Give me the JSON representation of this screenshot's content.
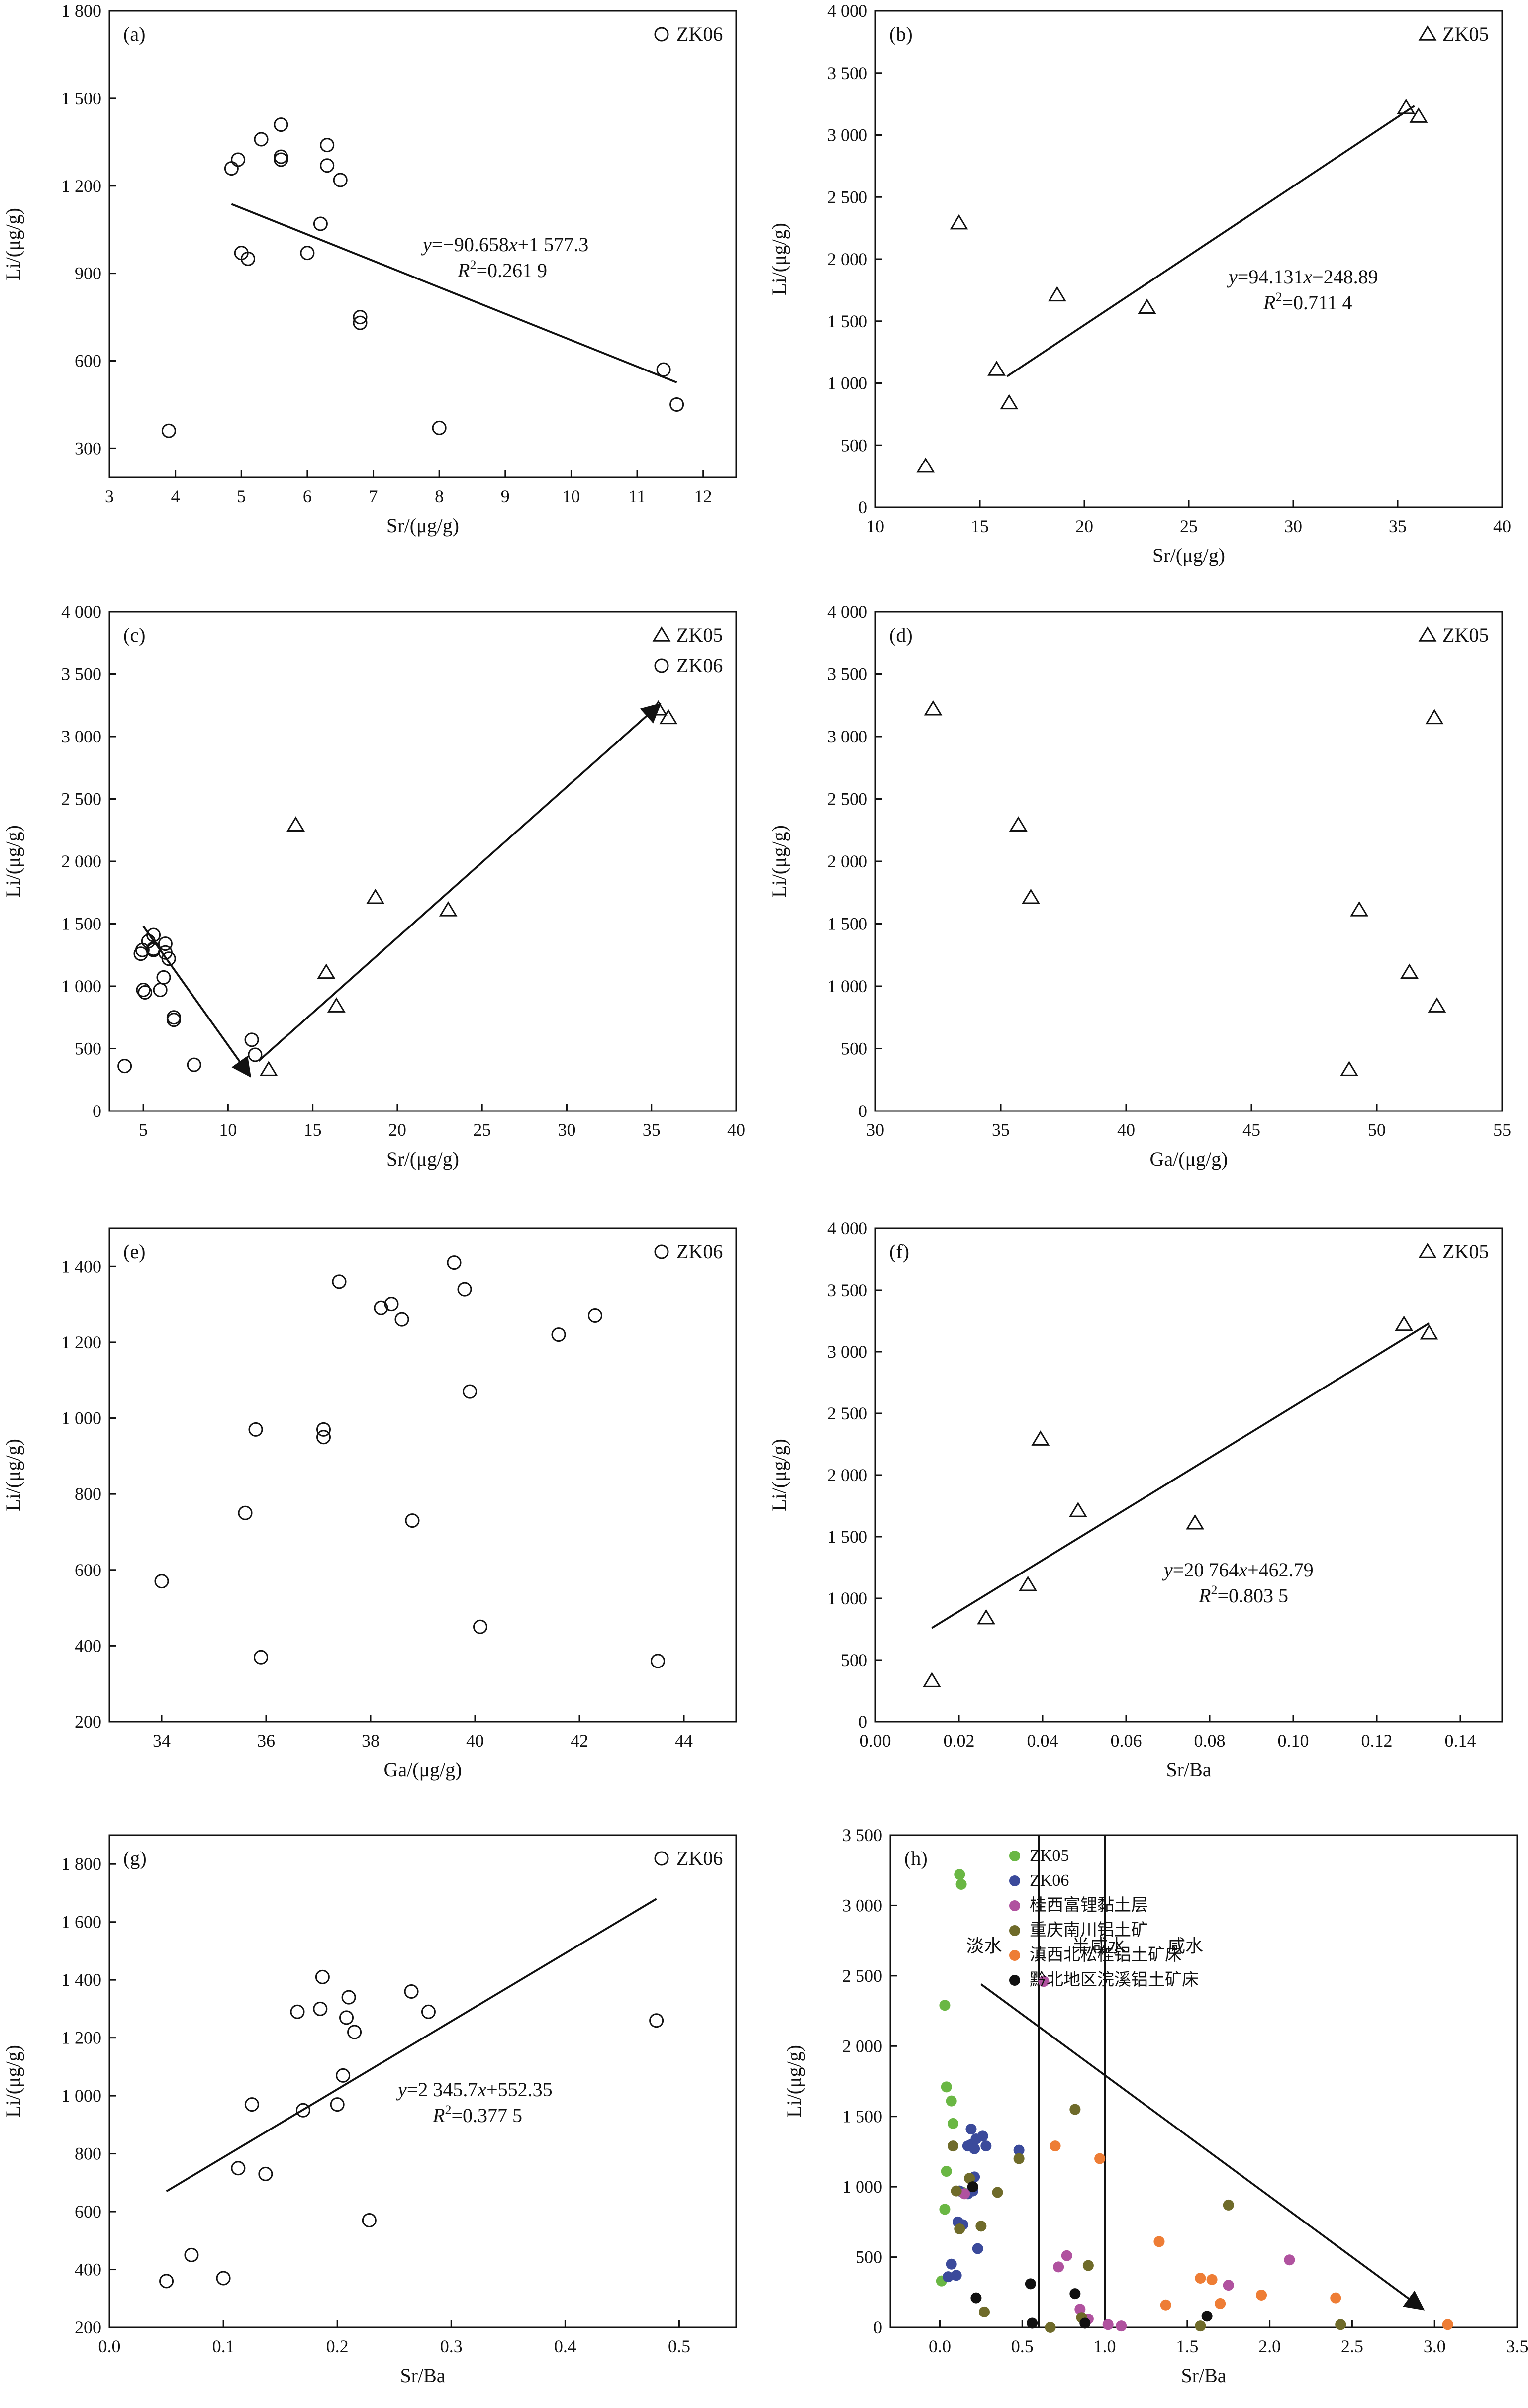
{
  "chart_data": [
    {
      "id": "a",
      "type": "scatter",
      "panel_label": "(a)",
      "xlabel": "Sr/(μg/g)",
      "ylabel": "Li/(μg/g)",
      "xlim": [
        3,
        12.5
      ],
      "ylim": [
        200,
        1800
      ],
      "xticks": [
        3,
        4,
        5,
        6,
        7,
        8,
        9,
        10,
        11,
        12
      ],
      "xtick_labels": [
        "3",
        "4",
        "5",
        "6",
        "7",
        "8",
        "9",
        "10",
        "11",
        "12"
      ],
      "yticks": [
        300,
        600,
        900,
        1200,
        1500,
        1800
      ],
      "ytick_labels": [
        "300",
        "600",
        "900",
        "1 200",
        "1 500",
        "1 800"
      ],
      "legend": [
        {
          "name": "ZK06",
          "marker": "circle",
          "color": "#111111"
        }
      ],
      "series": [
        {
          "name": "ZK06",
          "marker": "circle",
          "color": "#111111",
          "x": [
            3.9,
            4.85,
            4.95,
            5.0,
            5.1,
            5.3,
            5.6,
            5.6,
            5.6,
            6.0,
            6.2,
            6.3,
            6.3,
            6.5,
            6.8,
            6.8,
            8.0,
            11.4,
            11.6
          ],
          "y": [
            360,
            1260,
            1290,
            970,
            950,
            1360,
            1300,
            1290,
            1410,
            970,
            1070,
            1340,
            1270,
            1220,
            750,
            730,
            370,
            570,
            450
          ]
        }
      ],
      "fit": {
        "x": [
          4.85,
          11.6
        ],
        "y": [
          1137.6,
          525.7
        ]
      },
      "annotation": {
        "equation": "y=−90.658x+1 577.3",
        "r2": "0.261 9"
      }
    },
    {
      "id": "b",
      "type": "scatter",
      "panel_label": "(b)",
      "xlabel": "Sr/(μg/g)",
      "ylabel": "Li/(μg/g)",
      "xlim": [
        10,
        40
      ],
      "ylim": [
        0,
        4000
      ],
      "xticks": [
        10,
        15,
        20,
        25,
        30,
        35,
        40
      ],
      "xtick_labels": [
        "10",
        "15",
        "20",
        "25",
        "30",
        "35",
        "40"
      ],
      "yticks": [
        0,
        500,
        1000,
        1500,
        2000,
        2500,
        3000,
        3500,
        4000
      ],
      "ytick_labels": [
        "0",
        "500",
        "1 000",
        "1 500",
        "2 000",
        "2 500",
        "3 000",
        "3 500",
        "4 000"
      ],
      "legend": [
        {
          "name": "ZK05",
          "marker": "triangle",
          "color": "#111111"
        }
      ],
      "series": [
        {
          "name": "ZK05",
          "marker": "triangle",
          "color": "#111111",
          "x": [
            12.4,
            14.0,
            15.8,
            16.4,
            18.7,
            23.0,
            35.4,
            36.0
          ],
          "y": [
            330,
            2290,
            1110,
            840,
            1710,
            1610,
            3220,
            3150
          ]
        }
      ],
      "fit": {
        "x": [
          16.3,
          35.8
        ],
        "y": [
          1055,
          3235
        ]
      },
      "annotation": {
        "equation": "y=94.131x−248.89",
        "r2": "0.711 4"
      }
    },
    {
      "id": "c",
      "type": "scatter",
      "panel_label": "(c)",
      "xlabel": "Sr/(μg/g)",
      "ylabel": "Li/(μg/g)",
      "xlim": [
        3,
        40
      ],
      "ylim": [
        0,
        4000
      ],
      "xticks": [
        5,
        10,
        15,
        20,
        25,
        30,
        35,
        40
      ],
      "xtick_labels": [
        "5",
        "10",
        "15",
        "20",
        "25",
        "30",
        "35",
        "40"
      ],
      "yticks": [
        0,
        500,
        1000,
        1500,
        2000,
        2500,
        3000,
        3500,
        4000
      ],
      "ytick_labels": [
        "0",
        "500",
        "1 000",
        "1 500",
        "2 000",
        "2 500",
        "3 000",
        "3 500",
        "4 000"
      ],
      "legend": [
        {
          "name": "ZK05",
          "marker": "triangle",
          "color": "#111111"
        },
        {
          "name": "ZK06",
          "marker": "circle",
          "color": "#111111"
        }
      ],
      "series": [
        {
          "name": "ZK05",
          "marker": "triangle",
          "color": "#111111",
          "x": [
            12.4,
            14.0,
            15.8,
            16.4,
            18.7,
            23.0,
            35.4,
            36.0
          ],
          "y": [
            330,
            2290,
            1110,
            840,
            1710,
            1610,
            3220,
            3150
          ]
        },
        {
          "name": "ZK06",
          "marker": "circle",
          "color": "#111111",
          "x": [
            3.9,
            4.85,
            4.95,
            5.0,
            5.1,
            5.3,
            5.6,
            5.6,
            5.6,
            6.0,
            6.2,
            6.3,
            6.3,
            6.5,
            6.8,
            6.8,
            8.0,
            11.4,
            11.6
          ],
          "y": [
            360,
            1260,
            1290,
            970,
            950,
            1360,
            1300,
            1290,
            1410,
            970,
            1070,
            1340,
            1270,
            1220,
            750,
            730,
            370,
            570,
            450
          ]
        }
      ],
      "arrows": [
        {
          "from": [
            5.0,
            1480
          ],
          "to": [
            11.3,
            280
          ]
        },
        {
          "from": [
            11.8,
            400
          ],
          "to": [
            35.5,
            3260
          ]
        }
      ]
    },
    {
      "id": "d",
      "type": "scatter",
      "panel_label": "(d)",
      "xlabel": "Ga/(μg/g)",
      "ylabel": "Li/(μg/g)",
      "xlim": [
        30,
        55
      ],
      "ylim": [
        0,
        4000
      ],
      "xticks": [
        30,
        35,
        40,
        45,
        50,
        55
      ],
      "xtick_labels": [
        "30",
        "35",
        "40",
        "45",
        "50",
        "55"
      ],
      "yticks": [
        0,
        500,
        1000,
        1500,
        2000,
        2500,
        3000,
        3500,
        4000
      ],
      "ytick_labels": [
        "0",
        "500",
        "1 000",
        "1 500",
        "2 000",
        "2 500",
        "3 000",
        "3 500",
        "4 000"
      ],
      "legend": [
        {
          "name": "ZK05",
          "marker": "triangle",
          "color": "#111111"
        }
      ],
      "series": [
        {
          "name": "ZK05",
          "marker": "triangle",
          "color": "#111111",
          "x": [
            32.3,
            35.7,
            36.2,
            48.9,
            49.3,
            51.3,
            52.3,
            52.4
          ],
          "y": [
            3220,
            2290,
            1710,
            330,
            1610,
            1110,
            3150,
            840
          ]
        }
      ]
    },
    {
      "id": "e",
      "type": "scatter",
      "panel_label": "(e)",
      "xlabel": "Ga/(μg/g)",
      "ylabel": "Li/(μg/g)",
      "xlim": [
        33,
        45
      ],
      "ylim": [
        200,
        1500
      ],
      "xticks": [
        34,
        36,
        38,
        40,
        42,
        44
      ],
      "xtick_labels": [
        "34",
        "36",
        "38",
        "40",
        "42",
        "44"
      ],
      "yticks": [
        200,
        400,
        600,
        800,
        1000,
        1200,
        1400
      ],
      "ytick_labels": [
        "200",
        "400",
        "600",
        "800",
        "1 000",
        "1 200",
        "1 400"
      ],
      "legend": [
        {
          "name": "ZK06",
          "marker": "circle",
          "color": "#111111"
        }
      ],
      "series": [
        {
          "name": "ZK06",
          "marker": "circle",
          "color": "#111111",
          "x": [
            34.0,
            35.6,
            35.8,
            35.9,
            37.1,
            37.1,
            37.4,
            38.2,
            38.4,
            38.6,
            38.8,
            39.6,
            39.8,
            39.9,
            40.1,
            41.6,
            42.3,
            43.5
          ],
          "y": [
            570,
            750,
            970,
            370,
            970,
            950,
            1360,
            1290,
            1300,
            1260,
            730,
            1410,
            1340,
            1070,
            450,
            1220,
            1270,
            360
          ]
        }
      ]
    },
    {
      "id": "f",
      "type": "scatter",
      "panel_label": "(f)",
      "xlabel": "Sr/Ba",
      "ylabel": "Li/(μg/g)",
      "xlim": [
        0,
        0.15
      ],
      "ylim": [
        0,
        4000
      ],
      "xticks": [
        0,
        0.02,
        0.04,
        0.06,
        0.08,
        0.1,
        0.12,
        0.14
      ],
      "xtick_labels": [
        "0.00",
        "0.02",
        "0.04",
        "0.06",
        "0.08",
        "0.10",
        "0.12",
        "0.14"
      ],
      "yticks": [
        0,
        500,
        1000,
        1500,
        2000,
        2500,
        3000,
        3500,
        4000
      ],
      "ytick_labels": [
        "0",
        "500",
        "1 000",
        "1 500",
        "2 000",
        "2 500",
        "3 000",
        "3 500",
        "4 000"
      ],
      "legend": [
        {
          "name": "ZK05",
          "marker": "triangle",
          "color": "#111111"
        }
      ],
      "series": [
        {
          "name": "ZK05",
          "marker": "triangle",
          "color": "#111111",
          "x": [
            0.0135,
            0.0265,
            0.0365,
            0.0395,
            0.0485,
            0.0765,
            0.1265,
            0.1325
          ],
          "y": [
            330,
            840,
            1110,
            2290,
            1710,
            1610,
            3220,
            3150
          ]
        }
      ],
      "fit": {
        "x": [
          0.0135,
          0.1325
        ],
        "y": [
          760,
          3230
        ]
      },
      "annotation": {
        "equation": "y=20 764x+462.79",
        "r2": "0.803 5"
      }
    },
    {
      "id": "g",
      "type": "scatter",
      "panel_label": "(g)",
      "xlabel": "Sr/Ba",
      "ylabel": "Li/(μg/g)",
      "xlim": [
        0,
        0.55
      ],
      "ylim": [
        200,
        1900
      ],
      "xticks": [
        0,
        0.1,
        0.2,
        0.3,
        0.4,
        0.5
      ],
      "xtick_labels": [
        "0.0",
        "0.1",
        "0.2",
        "0.3",
        "0.4",
        "0.5"
      ],
      "yticks": [
        200,
        400,
        600,
        800,
        1000,
        1200,
        1400,
        1600,
        1800
      ],
      "ytick_labels": [
        "200",
        "400",
        "600",
        "800",
        "1 000",
        "1 200",
        "1 400",
        "1 600",
        "1 800"
      ],
      "legend": [
        {
          "name": "ZK06",
          "marker": "circle",
          "color": "#111111"
        }
      ],
      "series": [
        {
          "name": "ZK06",
          "marker": "circle",
          "color": "#111111",
          "x": [
            0.05,
            0.072,
            0.1,
            0.113,
            0.125,
            0.137,
            0.165,
            0.17,
            0.185,
            0.187,
            0.2,
            0.205,
            0.208,
            0.21,
            0.215,
            0.228,
            0.265,
            0.28,
            0.48
          ],
          "y": [
            360,
            450,
            370,
            750,
            970,
            730,
            1290,
            950,
            1300,
            1410,
            970,
            1070,
            1270,
            1340,
            1220,
            570,
            1360,
            1290,
            1260
          ]
        }
      ],
      "fit": {
        "x": [
          0.05,
          0.48
        ],
        "y": [
          670,
          1680
        ]
      },
      "annotation": {
        "equation": "y=2 345.7x+552.35",
        "r2": "0.377 5"
      }
    },
    {
      "id": "h",
      "type": "scatter",
      "panel_label": "(h)",
      "xlabel": "Sr/Ba",
      "ylabel": "Li/(μg/g)",
      "xlim": [
        -0.3,
        3.5
      ],
      "ylim": [
        0,
        3500
      ],
      "xticks": [
        0,
        0.5,
        1.0,
        1.5,
        2.0,
        2.5,
        3.0,
        3.5
      ],
      "xtick_labels": [
        "0.0",
        "0.5",
        "1.0",
        "1.5",
        "2.0",
        "2.5",
        "3.0",
        "3.5"
      ],
      "yticks": [
        0,
        500,
        1000,
        1500,
        2000,
        2500,
        3000,
        3500
      ],
      "ytick_labels": [
        "0",
        "500",
        "1 000",
        "1 500",
        "2 000",
        "2 500",
        "3 000",
        "3 500"
      ],
      "legend": [
        {
          "name": "ZK05",
          "marker": "dot",
          "color": "#6ab744"
        },
        {
          "name": "ZK06",
          "marker": "dot",
          "color": "#3b4a9b"
        },
        {
          "name": "桂西富锂黏土层",
          "marker": "dot",
          "color": "#b0529f"
        },
        {
          "name": "重庆南川铝土矿",
          "marker": "dot",
          "color": "#6f6b2a"
        },
        {
          "name": "滇西北松桂铝土矿床",
          "marker": "dot",
          "color": "#ee7d35"
        },
        {
          "name": "黔北地区浣溪铝土矿床",
          "marker": "dot",
          "color": "#111111"
        }
      ],
      "series": [
        {
          "name": "ZK05",
          "marker": "dot",
          "color": "#6ab744",
          "x": [
            0.01,
            0.03,
            0.04,
            0.04,
            0.03,
            0.07,
            0.08,
            0.12,
            0.13,
            0.14
          ],
          "y": [
            330,
            840,
            1110,
            1710,
            2290,
            1610,
            1450,
            3220,
            3150,
            960
          ]
        },
        {
          "name": "ZK06",
          "marker": "dot",
          "color": "#3b4a9b",
          "x": [
            0.05,
            0.07,
            0.1,
            0.11,
            0.12,
            0.14,
            0.17,
            0.17,
            0.19,
            0.19,
            0.2,
            0.21,
            0.21,
            0.22,
            0.23,
            0.26,
            0.28,
            0.48
          ],
          "y": [
            360,
            450,
            370,
            750,
            970,
            730,
            1290,
            950,
            1300,
            1410,
            970,
            1070,
            1270,
            1340,
            560,
            1360,
            1290,
            1260
          ]
        },
        {
          "name": "桂西富锂黏土层",
          "marker": "dot",
          "color": "#b0529f",
          "x": [
            0.15,
            0.63,
            0.72,
            0.77,
            0.85,
            0.9,
            1.02,
            1.1,
            1.75,
            2.12
          ],
          "y": [
            950,
            2460,
            430,
            510,
            130,
            60,
            20,
            10,
            300,
            480
          ]
        },
        {
          "name": "重庆南川铝土矿",
          "marker": "dot",
          "color": "#6f6b2a",
          "x": [
            0.08,
            0.1,
            0.12,
            0.18,
            0.25,
            0.27,
            0.35,
            0.48,
            0.67,
            0.82,
            0.86,
            0.9,
            1.75,
            1.58,
            2.43
          ],
          "y": [
            1290,
            970,
            700,
            1060,
            720,
            110,
            960,
            1200,
            0,
            1550,
            70,
            440,
            870,
            10,
            20
          ]
        },
        {
          "name": "滇西北松桂铝土矿床",
          "marker": "dot",
          "color": "#ee7d35",
          "x": [
            0.7,
            0.97,
            1.33,
            1.37,
            1.58,
            1.65,
            1.7,
            1.95,
            2.4,
            3.08
          ],
          "y": [
            1290,
            1200,
            610,
            160,
            350,
            340,
            170,
            230,
            210,
            20
          ]
        },
        {
          "name": "黔北地区浣溪铝土矿床",
          "marker": "dot",
          "color": "#111111",
          "x": [
            0.2,
            0.22,
            0.55,
            0.56,
            0.82,
            0.88,
            1.62
          ],
          "y": [
            1000,
            210,
            310,
            30,
            240,
            30,
            80
          ]
        }
      ],
      "vlines": [
        0.6,
        1.0
      ],
      "zones": [
        {
          "label": "淡水",
          "x": 0.16,
          "y": 2670
        },
        {
          "label": "半咸水",
          "x": 0.8,
          "y": 2670
        },
        {
          "label": "咸水",
          "x": 1.38,
          "y": 2670
        }
      ],
      "arrows": [
        {
          "from": [
            0.25,
            2440
          ],
          "to": [
            2.93,
            130
          ]
        }
      ]
    }
  ]
}
